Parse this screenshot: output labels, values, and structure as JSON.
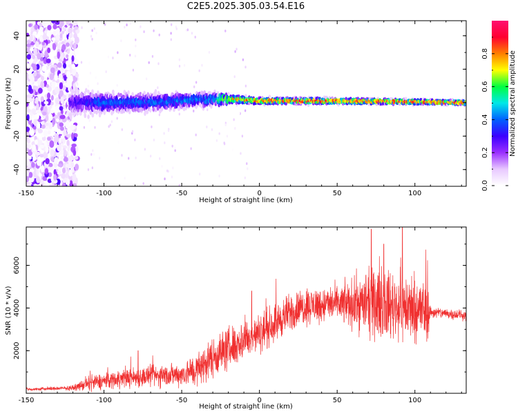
{
  "title": "C2E5.2025.305.03.54.E16",
  "chart_data": [
    {
      "type": "heatmap",
      "name": "spectrogram",
      "xlabel": "Height of straight line (km)",
      "ylabel": "Frequency (Hz)",
      "xlim": [
        -150,
        133
      ],
      "ylim": [
        -50,
        49
      ],
      "xticks": [
        -150,
        -100,
        -50,
        0,
        50,
        100
      ],
      "yticks": [
        -40,
        -20,
        0,
        20,
        40
      ],
      "colorbar": {
        "label": "Normalized spectral amplitude",
        "range": [
          0,
          1
        ],
        "ticks": [
          0.0,
          0.2,
          0.4,
          0.6,
          0.8
        ],
        "colors": [
          "#ffffff",
          "#e8c8ff",
          "#9b30ff",
          "#3c00ff",
          "#0060ff",
          "#00e8e8",
          "#00ff40",
          "#ffff00",
          "#ff8000",
          "#ff0030",
          "#ff1070"
        ]
      },
      "signal_center_hz": [
        [
          -115,
          0
        ],
        [
          -100,
          0
        ],
        [
          -80,
          0
        ],
        [
          -60,
          0.5
        ],
        [
          -40,
          2
        ],
        [
          -25,
          2
        ],
        [
          -15,
          2
        ],
        [
          0,
          1
        ],
        [
          50,
          1
        ],
        [
          100,
          0.5
        ],
        [
          133,
          0
        ]
      ],
      "band_halfwidth_hz": [
        [
          -120,
          10
        ],
        [
          -90,
          8
        ],
        [
          -60,
          7
        ],
        [
          -40,
          6
        ],
        [
          -20,
          4
        ],
        [
          0,
          3
        ],
        [
          133,
          2
        ]
      ],
      "peak_amplitude": [
        [
          -120,
          0.3
        ],
        [
          -100,
          0.45
        ],
        [
          -60,
          0.45
        ],
        [
          -30,
          0.5
        ],
        [
          -20,
          0.8
        ],
        [
          0,
          0.95
        ],
        [
          133,
          0.98
        ]
      ],
      "scatter_noise_region_km": [
        -150,
        -117
      ]
    },
    {
      "type": "line",
      "name": "snr",
      "xlabel": "Height of straight line (km)",
      "ylabel": "SNR (10 * v/v)",
      "xlim": [
        -150,
        133
      ],
      "ylim": [
        0,
        7800
      ],
      "xticks": [
        -150,
        -100,
        -50,
        0,
        50,
        100
      ],
      "yticks": [
        2000,
        4000,
        6000
      ],
      "color": "#f03030",
      "trend": [
        [
          -150,
          180
        ],
        [
          -120,
          250
        ],
        [
          -110,
          450
        ],
        [
          -90,
          700
        ],
        [
          -70,
          800
        ],
        [
          -50,
          900
        ],
        [
          -40,
          1100
        ],
        [
          -30,
          1700
        ],
        [
          -20,
          2100
        ],
        [
          -10,
          2500
        ],
        [
          0,
          2800
        ],
        [
          10,
          3300
        ],
        [
          20,
          3800
        ],
        [
          30,
          4100
        ],
        [
          50,
          4200
        ],
        [
          70,
          4200
        ],
        [
          90,
          4100
        ],
        [
          105,
          3900
        ],
        [
          110,
          3800
        ],
        [
          120,
          3750
        ],
        [
          133,
          3650
        ]
      ],
      "amplitude": [
        [
          -150,
          100
        ],
        [
          -120,
          150
        ],
        [
          -110,
          500
        ],
        [
          -80,
          700
        ],
        [
          -50,
          800
        ],
        [
          -40,
          1200
        ],
        [
          -20,
          1500
        ],
        [
          0,
          1300
        ],
        [
          20,
          1300
        ],
        [
          50,
          1200
        ],
        [
          70,
          2200
        ],
        [
          95,
          2400
        ],
        [
          108,
          2200
        ],
        [
          110,
          400
        ],
        [
          133,
          350
        ]
      ],
      "peaks": [
        [
          -78,
          2000
        ],
        [
          -5,
          4800
        ],
        [
          72,
          7700
        ],
        [
          80,
          7000
        ],
        [
          92,
          7800
        ]
      ]
    }
  ]
}
